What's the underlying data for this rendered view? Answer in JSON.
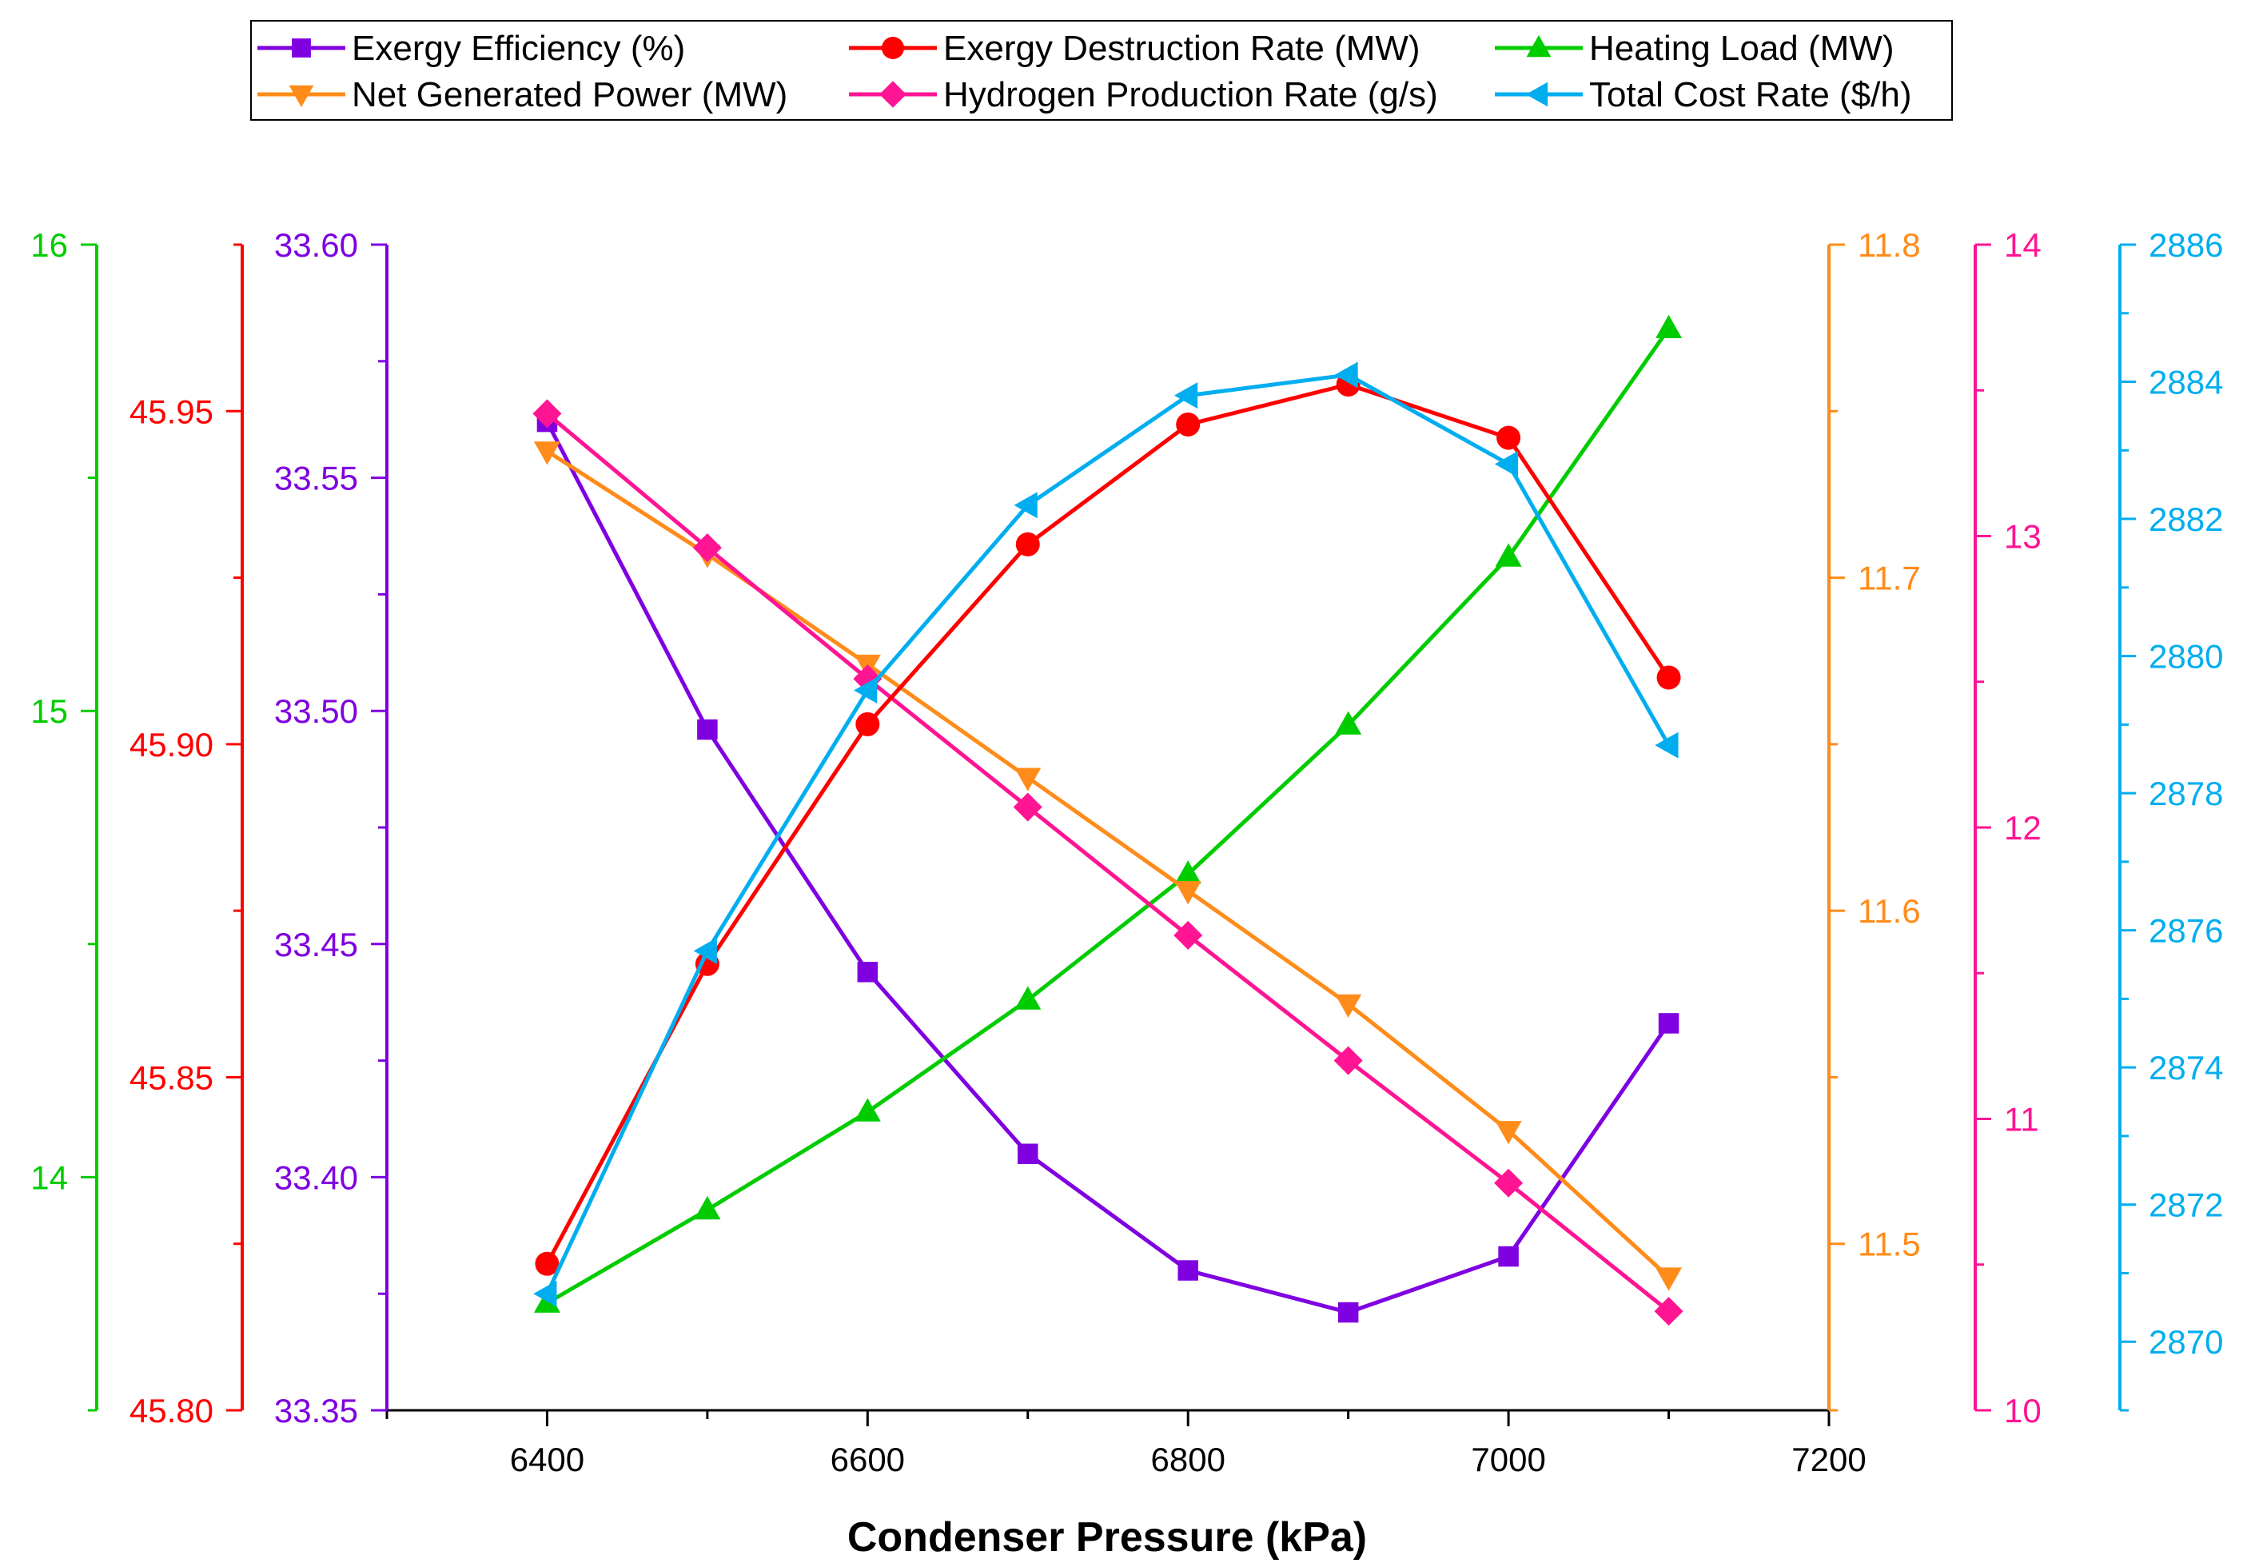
{
  "chart_data": {
    "type": "line",
    "xlabel": "Condenser Pressure (kPa)",
    "x": [
      6400,
      6500,
      6600,
      6700,
      6800,
      6900,
      7000,
      7100
    ],
    "xlim": [
      6300,
      7200
    ],
    "xticks": [
      "6400",
      "6600",
      "6800",
      "7000",
      "7200"
    ],
    "series": [
      {
        "key": "exergy_eff",
        "name": "Exergy Efficiency (%)",
        "color": "#7F00E0",
        "marker": "square",
        "values": [
          33.562,
          33.496,
          33.444,
          33.405,
          33.38,
          33.371,
          33.383,
          33.433
        ],
        "ylim": [
          33.35,
          33.6
        ],
        "yticks": [
          "33.35",
          "33.40",
          "33.45",
          "33.50",
          "33.55",
          "33.60"
        ]
      },
      {
        "key": "exergy_dest",
        "name": "Exergy Destruction Rate (MW)",
        "color": "#FF0000",
        "marker": "circle",
        "values": [
          45.822,
          45.867,
          45.903,
          45.93,
          45.948,
          45.954,
          45.946,
          45.91
        ],
        "ylim": [
          45.8,
          45.975
        ],
        "yticks": [
          "45.80",
          "45.85",
          "45.90",
          "45.95"
        ]
      },
      {
        "key": "heating",
        "name": "Heating Load (MW)",
        "color": "#00CC00",
        "marker": "triangle-up",
        "values": [
          13.73,
          13.93,
          14.14,
          14.38,
          14.65,
          14.97,
          15.33,
          15.82
        ],
        "ylim": [
          13.5,
          16.0
        ],
        "yticks": [
          "14",
          "15",
          "16"
        ]
      },
      {
        "key": "net_power",
        "name": "Net Generated Power (MW)",
        "color": "#FF8C1A",
        "marker": "triangle-down",
        "values": [
          11.738,
          11.707,
          11.674,
          11.64,
          11.606,
          11.572,
          11.534,
          11.49
        ],
        "ylim": [
          11.45,
          11.8
        ],
        "yticks": [
          "11.5",
          "11.6",
          "11.7",
          "11.8"
        ]
      },
      {
        "key": "hydrogen",
        "name": "Hydrogen Production Rate (g/s)",
        "color": "#FF1493",
        "marker": "diamond",
        "values": [
          13.42,
          12.96,
          12.51,
          12.07,
          11.63,
          11.2,
          10.78,
          10.34
        ],
        "ylim": [
          10.0,
          14.0
        ],
        "yticks": [
          "10",
          "11",
          "12",
          "13",
          "14"
        ]
      },
      {
        "key": "cost",
        "name": "Total Cost Rate ($/h)",
        "color": "#00AEEF",
        "marker": "triangle-left",
        "values": [
          2870.7,
          2875.7,
          2879.5,
          2882.2,
          2883.8,
          2884.1,
          2882.8,
          2878.7
        ],
        "ylim": [
          2869,
          2886
        ],
        "yticks": [
          "2870",
          "2872",
          "2874",
          "2876",
          "2878",
          "2880",
          "2882",
          "2884",
          "2886"
        ]
      }
    ],
    "legend": {
      "placement": "top-center",
      "rows": [
        [
          "exergy_eff",
          "exergy_dest",
          "heating"
        ],
        [
          "net_power",
          "hydrogen",
          "cost"
        ]
      ]
    }
  }
}
